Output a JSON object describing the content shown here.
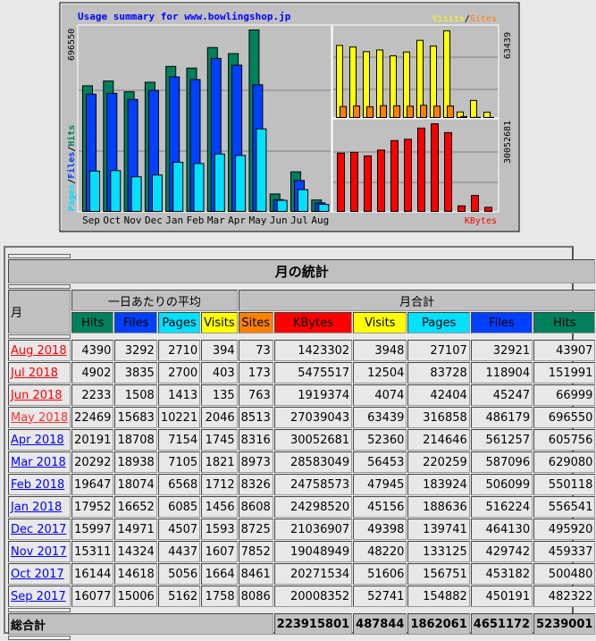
{
  "chart": {
    "title": "Usage summary for www.bowlingshop.jp",
    "legend_left": [
      "Pages",
      "/",
      "Files",
      "/",
      "Hits"
    ],
    "legend_top_right": [
      "Visits",
      "/",
      "Sites"
    ],
    "legend_bottom_right": "KBytes",
    "max_hits_label": "696550",
    "max_visits_label": "63439",
    "max_kbytes_label": "30052681",
    "colors": {
      "hits": "#00805C",
      "files": "#0040FF",
      "pages": "#00E0FF",
      "visits": "#FFFF00",
      "sites": "#FF8000",
      "kbytes": "#FF0000",
      "bg": "#C0C0C0"
    }
  },
  "chart_data": {
    "type": "bar",
    "title": "Usage summary for www.bowlingshop.jp",
    "categories": [
      "Sep",
      "Oct",
      "Nov",
      "Dec",
      "Jan",
      "Feb",
      "Mar",
      "Apr",
      "May",
      "Jun",
      "Jul",
      "Aug"
    ],
    "series": [
      {
        "name": "Hits",
        "values": [
          482322,
          500480,
          459337,
          495920,
          556541,
          550118,
          629080,
          605756,
          696550,
          66999,
          151991,
          43907
        ]
      },
      {
        "name": "Files",
        "values": [
          450191,
          453182,
          429742,
          464130,
          516224,
          506099,
          587096,
          561257,
          486179,
          45247,
          118904,
          32921
        ]
      },
      {
        "name": "Pages",
        "values": [
          154882,
          156751,
          133125,
          139741,
          188636,
          183924,
          220259,
          214646,
          316858,
          42404,
          83728,
          27107
        ]
      },
      {
        "name": "Visits",
        "values": [
          52741,
          51606,
          48220,
          49398,
          45156,
          47945,
          56453,
          52360,
          63439,
          4074,
          12504,
          3948
        ]
      },
      {
        "name": "Sites",
        "values": [
          8086,
          8461,
          7852,
          8725,
          8608,
          8326,
          8973,
          8316,
          8513,
          763,
          173,
          73
        ]
      },
      {
        "name": "KBytes",
        "values": [
          20008352,
          20271534,
          19048949,
          21036907,
          24298520,
          24758573,
          28583049,
          30052681,
          27039043,
          1919374,
          5475517,
          1423302
        ]
      }
    ]
  },
  "table": {
    "title": "月の統計",
    "month_header": "月",
    "avg_header": "一日あたりの平均",
    "total_header": "月合計",
    "columns": [
      "Hits",
      "Files",
      "Pages",
      "Visits",
      "Sites",
      "KBytes",
      "Visits",
      "Pages",
      "Files",
      "Hits"
    ],
    "column_colors": [
      "#00805C",
      "#0040FF",
      "#00E0FF",
      "#FFFF00",
      "#FF8000",
      "#FF0000",
      "#FFFF00",
      "#00E0FF",
      "#0040FF",
      "#00805C"
    ],
    "rows": [
      {
        "month": "Aug 2018",
        "link_color": "#FF0000",
        "values": [
          "4390",
          "3292",
          "2710",
          "394",
          "73",
          "1423302",
          "3948",
          "27107",
          "32921",
          "43907"
        ]
      },
      {
        "month": "Jul 2018",
        "link_color": "#FF0000",
        "values": [
          "4902",
          "3835",
          "2700",
          "403",
          "173",
          "5475517",
          "12504",
          "83728",
          "118904",
          "151991"
        ]
      },
      {
        "month": "Jun 2018",
        "link_color": "#FF0000",
        "values": [
          "2233",
          "1508",
          "1413",
          "135",
          "763",
          "1919374",
          "4074",
          "42404",
          "45247",
          "66999"
        ]
      },
      {
        "month": "May 2018",
        "link_color": "#FF3030",
        "values": [
          "22469",
          "15683",
          "10221",
          "2046",
          "8513",
          "27039043",
          "63439",
          "316858",
          "486179",
          "696550"
        ]
      },
      {
        "month": "Apr 2018",
        "link_color": "#0000FF",
        "values": [
          "20191",
          "18708",
          "7154",
          "1745",
          "8316",
          "30052681",
          "52360",
          "214646",
          "561257",
          "605756"
        ]
      },
      {
        "month": "Mar 2018",
        "link_color": "#0000FF",
        "values": [
          "20292",
          "18938",
          "7105",
          "1821",
          "8973",
          "28583049",
          "56453",
          "220259",
          "587096",
          "629080"
        ]
      },
      {
        "month": "Feb 2018",
        "link_color": "#0000FF",
        "values": [
          "19647",
          "18074",
          "6568",
          "1712",
          "8326",
          "24758573",
          "47945",
          "183924",
          "506099",
          "550118"
        ]
      },
      {
        "month": "Jan 2018",
        "link_color": "#0000FF",
        "values": [
          "17952",
          "16652",
          "6085",
          "1456",
          "8608",
          "24298520",
          "45156",
          "188636",
          "516224",
          "556541"
        ]
      },
      {
        "month": "Dec 2017",
        "link_color": "#0000FF",
        "values": [
          "15997",
          "14971",
          "4507",
          "1593",
          "8725",
          "21036907",
          "49398",
          "139741",
          "464130",
          "495920"
        ]
      },
      {
        "month": "Nov 2017",
        "link_color": "#0000FF",
        "values": [
          "15311",
          "14324",
          "4437",
          "1607",
          "7852",
          "19048949",
          "48220",
          "133125",
          "429742",
          "459337"
        ]
      },
      {
        "month": "Oct 2017",
        "link_color": "#0000FF",
        "values": [
          "16144",
          "14618",
          "5056",
          "1664",
          "8461",
          "20271534",
          "51606",
          "156751",
          "453182",
          "500480"
        ]
      },
      {
        "month": "Sep 2017",
        "link_color": "#0000FF",
        "values": [
          "16077",
          "15006",
          "5162",
          "1758",
          "8086",
          "20008352",
          "52741",
          "154882",
          "450191",
          "482322"
        ]
      }
    ],
    "totals_label": "総合計",
    "totals": [
      "223915801",
      "487844",
      "1862061",
      "4651172",
      "5239001"
    ]
  }
}
